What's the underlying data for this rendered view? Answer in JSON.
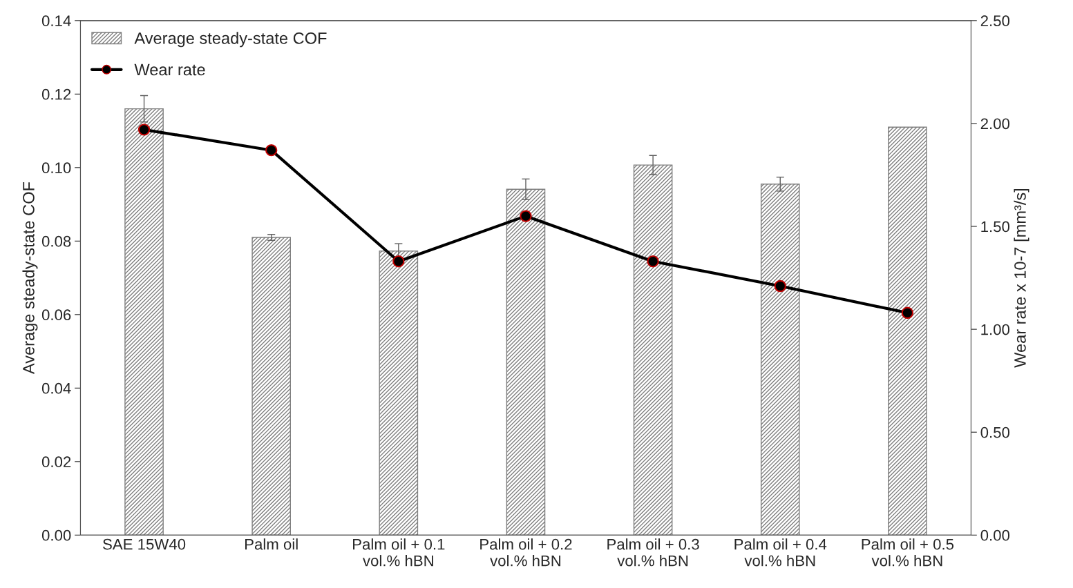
{
  "chart_data": {
    "type": "bar",
    "categories": [
      "SAE 15W40",
      "Palm oil",
      "Palm oil + 0.1\nvol.% hBN",
      "Palm oil + 0.2\nvol.% hBN",
      "Palm oil + 0.3\nvol.% hBN",
      "Palm oil + 0.4\nvol.% hBN",
      "Palm oil + 0.5\nvol.% hBN"
    ],
    "ylabel": "Average steady-state COF",
    "y2label": "Wear rate x 10-7 [mm³/s]",
    "series": [
      {
        "name": "Average steady-state COF",
        "color": "#7f7f7f",
        "values": [
          0.116,
          0.081,
          0.0773,
          0.0941,
          0.1007,
          0.0955,
          0.111
        ],
        "errors": [
          0.0036,
          0.0008,
          0.002,
          0.0028,
          0.0026,
          0.0019,
          null
        ]
      },
      {
        "name": "Wear rate",
        "type": "line",
        "axis": "y2",
        "color": "#000000",
        "marker": "circle",
        "values": [
          1.97,
          1.87,
          1.33,
          1.55,
          1.33,
          1.21,
          1.08
        ]
      }
    ],
    "ylim": [
      0,
      0.14
    ],
    "yticks": [
      {
        "value": 0,
        "label": "0.00"
      },
      {
        "value": 0.02,
        "label": "0.02"
      },
      {
        "value": 0.04,
        "label": "0.04"
      },
      {
        "value": 0.06,
        "label": "0.06"
      },
      {
        "value": 0.08,
        "label": "0.08"
      },
      {
        "value": 0.1,
        "label": "0.10"
      },
      {
        "value": 0.12,
        "label": "0.12"
      },
      {
        "value": 0.14,
        "label": "0.14"
      }
    ],
    "y2lim": [
      0,
      2.5
    ],
    "y2ticks": [
      {
        "value": 0,
        "label": "0.00"
      },
      {
        "value": 0.5,
        "label": "0.50"
      },
      {
        "value": 1,
        "label": "1.00"
      },
      {
        "value": 1.5,
        "label": "1.50"
      },
      {
        "value": 2,
        "label": "2.00"
      },
      {
        "value": 2.5,
        "label": "2.50"
      }
    ],
    "grid": false,
    "legend": "top left"
  }
}
